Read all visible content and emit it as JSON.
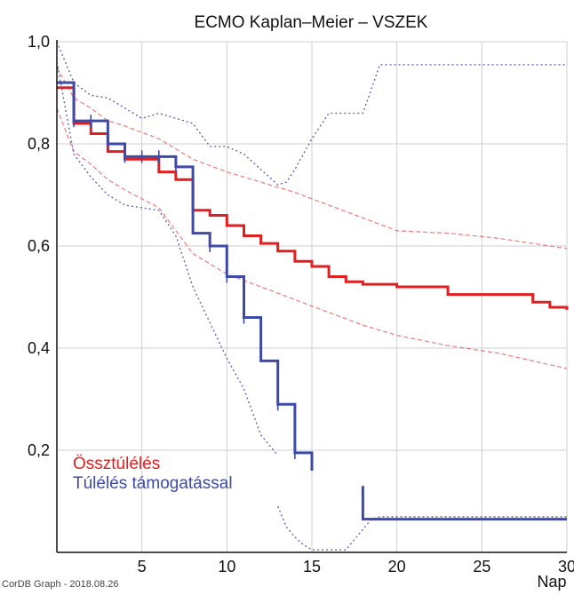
{
  "chart_data": {
    "type": "line",
    "title": "ECMO Kaplan–Meier – VSZEK",
    "xlabel": "Nap",
    "ylabel": "",
    "xlim": [
      0,
      30
    ],
    "ylim": [
      0,
      1.0
    ],
    "xticks": [
      5,
      10,
      15,
      20,
      25,
      30
    ],
    "yticks": [
      0.2,
      0.4,
      0.6,
      0.8,
      1.0
    ],
    "ytick_labels": [
      "0,2",
      "0,4",
      "0,6",
      "0,8",
      "1,0"
    ],
    "grid": true,
    "legend_position": "bottom-left",
    "series": [
      {
        "name": "Össztúlélés",
        "color": "#e02020",
        "x": [
          0,
          0.5,
          1,
          2,
          3,
          4,
          6,
          7,
          8,
          9,
          10,
          11,
          12,
          13,
          14,
          15,
          16,
          17,
          18,
          20,
          23,
          28,
          29,
          30
        ],
        "y": [
          0.91,
          0.91,
          0.84,
          0.82,
          0.785,
          0.77,
          0.745,
          0.73,
          0.67,
          0.66,
          0.64,
          0.62,
          0.605,
          0.59,
          0.57,
          0.56,
          0.54,
          0.53,
          0.525,
          0.52,
          0.505,
          0.49,
          0.48,
          0.475
        ],
        "censor_x": [],
        "ci_upper": {
          "x": [
            0,
            1,
            2,
            3,
            4,
            6,
            8,
            10,
            12,
            14,
            16,
            18,
            20,
            23,
            26,
            28,
            30
          ],
          "y": [
            0.95,
            0.89,
            0.87,
            0.845,
            0.835,
            0.81,
            0.77,
            0.745,
            0.725,
            0.705,
            0.68,
            0.655,
            0.63,
            0.625,
            0.615,
            0.605,
            0.595
          ]
        },
        "ci_lower": {
          "x": [
            0,
            1,
            2,
            3,
            4,
            6,
            8,
            10,
            12,
            14,
            16,
            18,
            20,
            23,
            26,
            28,
            30
          ],
          "y": [
            0.87,
            0.785,
            0.76,
            0.73,
            0.71,
            0.675,
            0.585,
            0.545,
            0.52,
            0.495,
            0.47,
            0.445,
            0.425,
            0.405,
            0.39,
            0.375,
            0.36
          ]
        }
      },
      {
        "name": "Túlélés támogatással",
        "color": "#3d4aa8",
        "x": [
          0,
          1,
          3,
          4,
          6,
          7,
          8,
          9,
          10,
          11,
          12,
          13,
          14,
          15
        ],
        "y": [
          0.92,
          0.845,
          0.8,
          0.775,
          0.775,
          0.755,
          0.625,
          0.6,
          0.54,
          0.46,
          0.375,
          0.29,
          0.195,
          0.16
        ],
        "censor_x": [
          1,
          2,
          3,
          4,
          5,
          6,
          7,
          9,
          10,
          11,
          13,
          14
        ],
        "tail": {
          "x": [
            18,
            18,
            30
          ],
          "y": [
            0.13,
            0.065,
            0.065
          ]
        },
        "ci_upper": {
          "x": [
            0,
            1,
            2,
            3,
            5,
            6,
            8,
            9,
            10,
            11,
            12,
            13,
            13.5,
            14,
            15,
            16,
            17,
            18,
            19,
            20,
            30
          ],
          "y": [
            1.0,
            0.92,
            0.895,
            0.89,
            0.85,
            0.86,
            0.84,
            0.795,
            0.795,
            0.78,
            0.75,
            0.72,
            0.725,
            0.75,
            0.81,
            0.86,
            0.86,
            0.86,
            0.955,
            0.955,
            0.955
          ]
        },
        "ci_lower": {
          "x": [
            0,
            1,
            2,
            3,
            4,
            6,
            7,
            8,
            9,
            10,
            11,
            12,
            13
          ],
          "y": [
            0.96,
            0.78,
            0.735,
            0.7,
            0.68,
            0.67,
            0.62,
            0.52,
            0.45,
            0.38,
            0.32,
            0.23,
            0.19
          ]
        },
        "ci_lower_tail": {
          "x": [
            13,
            13.5,
            14,
            14.5,
            15,
            16,
            17,
            18,
            18.5,
            19,
            20,
            30
          ],
          "y": [
            0.09,
            0.05,
            0.03,
            0.015,
            0.005,
            0.005,
            0.005,
            0.045,
            0.065,
            0.07,
            0.07,
            0.07
          ]
        }
      }
    ]
  },
  "footer_text": "CorDB Graph - 2018.08.26"
}
